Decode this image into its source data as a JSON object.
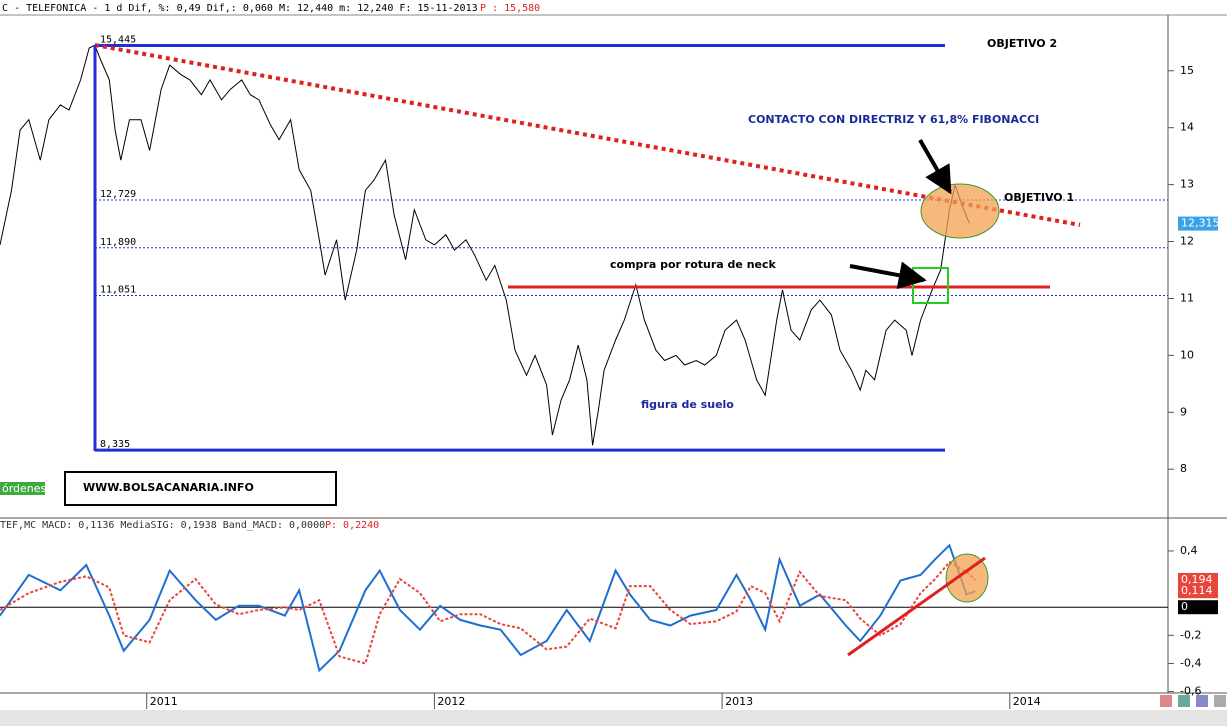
{
  "header": {
    "left": "C - TELEFONICA -  1 d Dif, %: 0,49 Dif,: 0,060 M: 12,440 m: 12,240 F: 15-11-2013",
    "right": "P : 15,580"
  },
  "macd_header": {
    "left": "TEF,MC MACD: 0,1136 MediaSIG: 0,1938 Band_MACD: 0,0000",
    "right": "P: 0,2240"
  },
  "annotations": {
    "objetivo2": "OBJETIVO 2",
    "objetivo1": "OBJETIVO 1",
    "contacto": "CONTACTO CON DIRECTRIZ Y 61,8% FIBONACCI",
    "compra": "compra por rotura de neck",
    "suelo": "figura de suelo",
    "web": "WWW.BOLSACANARIA.INFO",
    "ordenes": "órdenes"
  },
  "chart_data": [
    {
      "type": "line",
      "xlim": [
        2010.49,
        2014.55
      ],
      "ylim": [
        7.16,
        15.98
      ],
      "yticks": [
        8,
        9,
        10,
        11,
        12,
        13,
        14,
        15
      ],
      "x": [
        2010.49,
        2010.53,
        2010.56,
        2010.59,
        2010.63,
        2010.66,
        2010.7,
        2010.73,
        2010.77,
        2010.8,
        2010.82,
        2010.84,
        2010.87,
        2010.89,
        2010.91,
        2010.94,
        2010.98,
        2011.01,
        2011.05,
        2011.08,
        2011.12,
        2011.15,
        2011.19,
        2011.22,
        2011.26,
        2011.29,
        2011.33,
        2011.36,
        2011.39,
        2011.43,
        2011.46,
        2011.5,
        2011.53,
        2011.57,
        2011.6,
        2011.62,
        2011.66,
        2011.69,
        2011.73,
        2011.76,
        2011.79,
        2011.83,
        2011.86,
        2011.9,
        2011.93,
        2011.97,
        2012.0,
        2012.04,
        2012.07,
        2012.11,
        2012.14,
        2012.18,
        2012.21,
        2012.25,
        2012.28,
        2012.32,
        2012.35,
        2012.39,
        2012.41,
        2012.44,
        2012.47,
        2012.5,
        2012.53,
        2012.55,
        2012.57,
        2012.59,
        2012.63,
        2012.66,
        2012.7,
        2012.73,
        2012.77,
        2012.8,
        2012.84,
        2012.87,
        2012.91,
        2012.94,
        2012.98,
        2013.01,
        2013.05,
        2013.08,
        2013.12,
        2013.15,
        2013.19,
        2013.21,
        2013.24,
        2013.27,
        2013.31,
        2013.34,
        2013.38,
        2013.41,
        2013.45,
        2013.48,
        2013.5,
        2013.53,
        2013.57,
        2013.6,
        2013.64,
        2013.66,
        2013.69,
        2013.73,
        2013.76,
        2013.79,
        2013.81,
        2013.84,
        2013.86
      ],
      "series": [
        {
          "name": "TELEFONICA",
          "color": "#000000",
          "values": [
            11.94,
            12.9,
            13.96,
            14.14,
            13.43,
            14.14,
            14.4,
            14.31,
            14.84,
            15.4,
            15.45,
            15.19,
            14.84,
            13.96,
            13.43,
            14.14,
            14.14,
            13.6,
            14.67,
            15.1,
            14.93,
            14.84,
            14.58,
            14.84,
            14.49,
            14.67,
            14.84,
            14.58,
            14.49,
            14.05,
            13.79,
            14.14,
            13.26,
            12.9,
            12.03,
            11.41,
            12.03,
            10.97,
            11.85,
            12.9,
            13.08,
            13.43,
            12.47,
            11.68,
            12.56,
            12.03,
            11.94,
            12.12,
            11.85,
            12.03,
            11.76,
            11.32,
            11.58,
            10.97,
            10.09,
            9.65,
            10.0,
            9.48,
            8.6,
            9.21,
            9.57,
            10.18,
            9.57,
            8.42,
            9.04,
            9.74,
            10.27,
            10.62,
            11.24,
            10.62,
            10.09,
            9.91,
            10.0,
            9.83,
            9.91,
            9.83,
            10.0,
            10.44,
            10.62,
            10.27,
            9.57,
            9.3,
            10.62,
            11.15,
            10.44,
            10.27,
            10.8,
            10.97,
            10.71,
            10.09,
            9.74,
            9.39,
            9.74,
            9.57,
            10.44,
            10.62,
            10.44,
            10.0,
            10.62,
            11.15,
            11.5,
            12.56,
            12.99,
            12.56,
            12.315
          ]
        }
      ],
      "levels": [
        {
          "value": 15.445,
          "label": "15,445",
          "dash": false
        },
        {
          "value": 12.729,
          "label": "12,729",
          "dash": true
        },
        {
          "value": 11.89,
          "label": "11,890",
          "dash": true
        },
        {
          "value": 11.051,
          "label": "11,051",
          "dash": true
        },
        {
          "value": 8.335,
          "label": "8,335",
          "dash": false
        }
      ],
      "tags": [
        {
          "value": 12.315,
          "label": "12,315",
          "color": "#3aa0e8"
        }
      ]
    },
    {
      "type": "line",
      "xlim": [
        2010.49,
        2014.55
      ],
      "ylim": [
        -0.61,
        0.62
      ],
      "xticks": [
        2011,
        2012,
        2013,
        2014
      ],
      "yticks": [
        {
          "value": 0.4,
          "label": "0,4"
        },
        {
          "value": -0.2,
          "label": "-0,2"
        },
        {
          "value": -0.4,
          "label": "-0,4"
        },
        {
          "value": -0.6,
          "label": "-0,6"
        }
      ],
      "x": [
        2010.49,
        2010.59,
        2010.7,
        2010.79,
        2010.87,
        2010.92,
        2011.01,
        2011.08,
        2011.17,
        2011.24,
        2011.32,
        2011.39,
        2011.48,
        2011.53,
        2011.6,
        2011.67,
        2011.76,
        2011.81,
        2011.88,
        2011.95,
        2012.02,
        2012.09,
        2012.16,
        2012.23,
        2012.3,
        2012.39,
        2012.46,
        2012.54,
        2012.63,
        2012.68,
        2012.75,
        2012.82,
        2012.89,
        2012.98,
        2013.05,
        2013.1,
        2013.15,
        2013.2,
        2013.27,
        2013.34,
        2013.43,
        2013.48,
        2013.55,
        2013.62,
        2013.69,
        2013.74,
        2013.79,
        2013.85,
        2013.88
      ],
      "series": [
        {
          "name": "MACD",
          "color": "#1e6fd0",
          "dash": false,
          "values": [
            -0.06,
            0.23,
            0.12,
            0.3,
            -0.06,
            -0.31,
            -0.09,
            0.26,
            0.05,
            -0.09,
            0.01,
            0.01,
            -0.06,
            0.12,
            -0.45,
            -0.31,
            0.12,
            0.26,
            -0.02,
            -0.16,
            0.01,
            -0.09,
            -0.13,
            -0.16,
            -0.34,
            -0.24,
            -0.02,
            -0.24,
            0.26,
            0.09,
            -0.09,
            -0.13,
            -0.06,
            -0.02,
            0.23,
            0.05,
            -0.16,
            0.34,
            0.01,
            0.09,
            -0.13,
            -0.24,
            -0.06,
            0.19,
            0.23,
            0.34,
            0.44,
            0.09,
            0.114
          ]
        },
        {
          "name": "MediaSIG",
          "color": "#e8463c",
          "dash": true,
          "values": [
            -0.02,
            0.1,
            0.18,
            0.22,
            0.14,
            -0.2,
            -0.25,
            0.05,
            0.2,
            0.02,
            -0.05,
            -0.02,
            0.0,
            -0.02,
            0.05,
            -0.35,
            -0.4,
            -0.05,
            0.2,
            0.1,
            -0.1,
            -0.05,
            -0.05,
            -0.12,
            -0.15,
            -0.3,
            -0.28,
            -0.08,
            -0.15,
            0.15,
            0.15,
            -0.02,
            -0.12,
            -0.1,
            -0.03,
            0.15,
            0.1,
            -0.1,
            0.25,
            0.08,
            0.05,
            -0.08,
            -0.2,
            -0.12,
            0.1,
            0.2,
            0.32,
            0.25,
            0.194
          ]
        }
      ],
      "tags": [
        {
          "value": 0.194,
          "label": "0,194",
          "color": "#e8463c"
        },
        {
          "value": 0.114,
          "label": "0,114",
          "color": "#e8463c"
        },
        {
          "value": 0,
          "label": "0",
          "color": "#000000"
        }
      ]
    }
  ]
}
